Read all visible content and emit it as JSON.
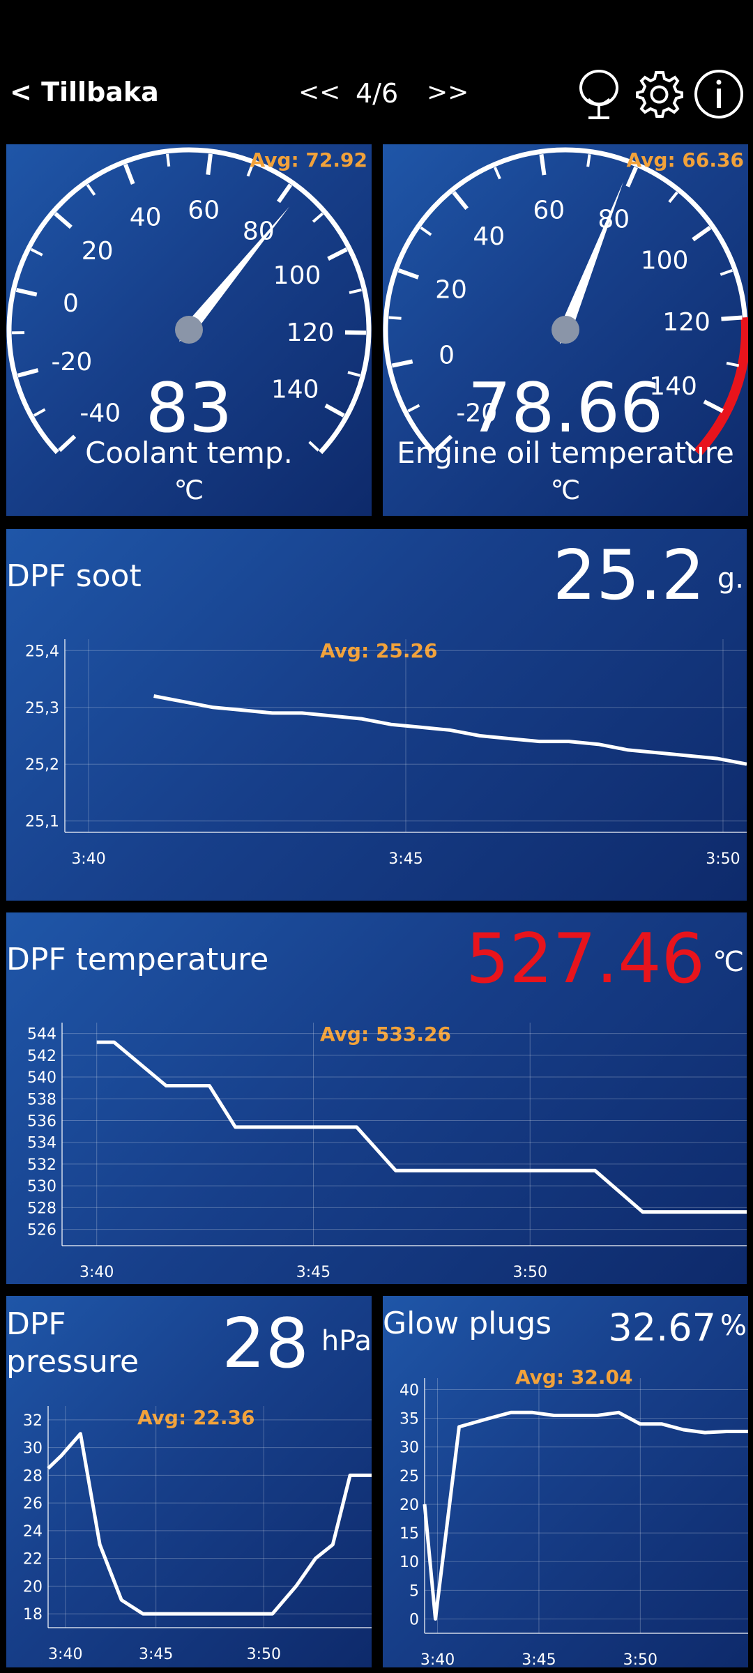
{
  "nav": {
    "back_label": "< Tillbaka",
    "prev_label": "<<",
    "page_indicator": "4/6",
    "next_label": ">>"
  },
  "icons": {
    "mic": "microphone-icon",
    "settings": "gear-icon",
    "info": "info-icon"
  },
  "gauges": [
    {
      "title": "Coolant temp.",
      "unit": "℃",
      "value": "83",
      "avg": "Avg: 72.92",
      "ticks": [
        "-40",
        "-20",
        "0",
        "20",
        "40",
        "60",
        "80",
        "100",
        "120",
        "140"
      ],
      "needle_value": 83,
      "min": -40,
      "max": 150
    },
    {
      "title": "Engine oil temperature",
      "unit": "℃",
      "value": "78.66",
      "avg": "Avg: 66.36",
      "ticks": [
        "-20",
        "0",
        "20",
        "40",
        "60",
        "80",
        "100",
        "120",
        "140"
      ],
      "needle_value": 78.66,
      "min": -20,
      "max": 150,
      "redzone_from": 120
    }
  ],
  "charts": {
    "soot": {
      "title": "DPF soot",
      "value": "25.2",
      "unit": "g.",
      "avg": "Avg: 25.26"
    },
    "temp": {
      "title": "DPF temperature",
      "value": "527.46",
      "unit": "℃",
      "avg": "Avg: 533.26"
    },
    "pressure": {
      "title": "DPF pressure",
      "value": "28",
      "unit": "hPa",
      "avg": "Avg: 22.36"
    },
    "glow": {
      "title": "Glow plugs",
      "value": "32.67",
      "unit": "%",
      "avg": "Avg: 32.04"
    }
  },
  "colors": {
    "accent_avg": "#f2a23a",
    "alert_value": "#e8141c",
    "panel_blue": "#1a4a9a"
  },
  "chart_data": [
    {
      "type": "line",
      "title": "DPF soot",
      "xlabel": "",
      "ylabel": "",
      "x_ticks": [
        "3:40",
        "3:45",
        "3:50"
      ],
      "y_ticks": [
        "25,1",
        "25,2",
        "25,3",
        "25,4"
      ],
      "ylim": [
        25.08,
        25.42
      ],
      "x": [
        3.0,
        4.0,
        5.0,
        6.0,
        7.0,
        8.0,
        9.0,
        10.0,
        11.0,
        12.0,
        13.0,
        14.0,
        15.0,
        16.0,
        17.0,
        18.0,
        19.0
      ],
      "values": [
        25.32,
        25.31,
        25.3,
        25.295,
        25.29,
        25.29,
        25.285,
        25.28,
        25.27,
        25.265,
        25.26,
        25.25,
        25.245,
        25.24,
        25.24,
        25.235,
        25.225
      ],
      "x_extra": [
        [
          20.0,
          25.22
        ],
        [
          21.0,
          25.215
        ],
        [
          22.0,
          25.21
        ],
        [
          23.0,
          25.2
        ]
      ]
    },
    {
      "type": "line",
      "title": "DPF temperature",
      "xlabel": "",
      "ylabel": "",
      "x_ticks": [
        "3:40",
        "3:45",
        "3:50"
      ],
      "y_ticks": [
        "526",
        "528",
        "530",
        "532",
        "534",
        "536",
        "538",
        "540",
        "542",
        "544"
      ],
      "ylim": [
        524.5,
        545
      ],
      "x": [
        39.0,
        39.4,
        40.6,
        41.6,
        42.2,
        43.5,
        44.0,
        45.0,
        45.9,
        46.8,
        48.0,
        49.0,
        50.5,
        51.6,
        52.5,
        53.5,
        54.0
      ],
      "values": [
        543.2,
        543.2,
        539.2,
        539.2,
        535.4,
        535.4,
        535.4,
        535.4,
        531.4,
        531.4,
        531.4,
        531.4,
        531.4,
        527.6,
        527.6,
        527.6,
        527.6
      ]
    },
    {
      "type": "line",
      "title": "DPF pressure",
      "xlabel": "",
      "ylabel": "",
      "x_ticks": [
        "3:40",
        "3:45",
        "3:50"
      ],
      "y_ticks": [
        "18",
        "20",
        "22",
        "24",
        "26",
        "28",
        "30",
        "32"
      ],
      "ylim": [
        17,
        33
      ],
      "x": [
        39.0,
        39.6,
        40.5,
        41.4,
        42.4,
        43.4,
        44.4,
        45.4,
        46.4,
        47.4,
        48.4,
        49.4,
        50.5,
        51.4,
        52.2,
        53.0,
        54.0
      ],
      "values": [
        28.5,
        29.4,
        31,
        23,
        19,
        18,
        18,
        18,
        18,
        18,
        18,
        18,
        20,
        22,
        23,
        28,
        28
      ]
    },
    {
      "type": "line",
      "title": "Glow plugs",
      "xlabel": "",
      "ylabel": "",
      "x_ticks": [
        "3:40",
        "3:45",
        "3:50"
      ],
      "y_ticks": [
        "0",
        "5",
        "10",
        "15",
        "20",
        "25",
        "30",
        "35",
        "40"
      ],
      "ylim": [
        -2.5,
        42
      ],
      "x": [
        39.0,
        39.5,
        40.6,
        42.0,
        43.0,
        44.0,
        45.0,
        46.0,
        47.0,
        48.0,
        49.0,
        50.0,
        51.0,
        52.0,
        53.0,
        54.0
      ],
      "values": [
        20,
        0,
        33.5,
        35,
        36,
        36,
        35.5,
        35.5,
        35.5,
        36,
        34,
        34,
        33,
        32.5,
        32.7,
        32.7
      ]
    }
  ]
}
